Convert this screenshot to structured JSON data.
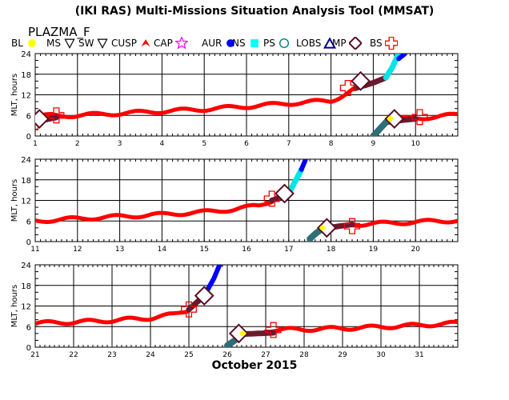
{
  "header": {
    "title": "(IKI RAS) Multi-Missions Situation Analysis Tool (MMSAT)",
    "subtitle": "PLAZMA_F"
  },
  "legend": [
    {
      "label": "BL",
      "symbol": "dot",
      "color": "#ffff00"
    },
    {
      "label": "MS",
      "symbol": "triangle-down-open",
      "color": "#000000"
    },
    {
      "label": "SW",
      "symbol": "triangle-down-open",
      "color": "#000000"
    },
    {
      "label": "CUSP",
      "symbol": "arrow-red",
      "color": "#ff0000"
    },
    {
      "label": "CAP",
      "symbol": "star-open",
      "color": "#ff00ff"
    },
    {
      "label": "AUR",
      "symbol": "dot",
      "color": "#0000ff"
    },
    {
      "label": "NS",
      "symbol": "square",
      "color": "#00ffff"
    },
    {
      "label": "PS",
      "symbol": "circle-open",
      "color": "#008080"
    },
    {
      "label": "LOBS",
      "symbol": "triangle-open",
      "color": "#000080"
    },
    {
      "label": "MP",
      "symbol": "diamond-open",
      "color": "#5a0f24"
    },
    {
      "label": "BS",
      "symbol": "cross-open",
      "color": "#ff0000"
    }
  ],
  "xcaption": "October 2015",
  "chart_data": [
    {
      "type": "line",
      "panel": 1,
      "ylabel": "MLT, hours",
      "xlim": [
        1,
        11
      ],
      "ylim": [
        0,
        24
      ],
      "yticks": [
        0,
        6,
        12,
        18,
        24
      ],
      "xticks": [
        1,
        2,
        3,
        4,
        5,
        6,
        7,
        8,
        9,
        10
      ],
      "tick_labels": [
        "1",
        "2",
        "3",
        "4",
        "5",
        "6",
        "7",
        "8",
        "9",
        "10"
      ],
      "grid": true,
      "series": [
        {
          "region": "SW",
          "color": "#ff0000",
          "segments": [
            {
              "x": [
                1.0,
                2.0,
                3.0,
                4.0,
                5.0,
                6.0,
                7.0,
                7.6,
                8.0,
                8.3,
                8.6
              ],
              "y": [
                5.8,
                6.0,
                6.6,
                7.2,
                7.8,
                8.6,
                9.5,
                10.0,
                10.2,
                12.0,
                14.0
              ]
            },
            {
              "x": [
                9.5,
                10.0,
                10.5,
                11.0
              ],
              "y": [
                5.0,
                5.2,
                5.6,
                6.2
              ]
            }
          ]
        },
        {
          "region": "MS",
          "color": "#6b1a2e",
          "segments": [
            {
              "x": [
                1.0,
                1.25,
                1.5
              ],
              "y": [
                4.0,
                4.8,
                5.4
              ]
            },
            {
              "x": [
                8.6,
                9.0,
                9.3
              ],
              "y": [
                14.0,
                15.5,
                17.0
              ]
            },
            {
              "x": [
                9.3,
                9.6,
                10.0
              ],
              "y": [
                4.0,
                4.5,
                5.0
              ]
            }
          ]
        },
        {
          "region": "NS",
          "color": "#00e5e5",
          "segments": [
            {
              "x": [
                9.3,
                9.45,
                9.6
              ],
              "y": [
                17.0,
                20.0,
                24.0
              ]
            }
          ]
        },
        {
          "region": "AUR",
          "color": "#0000ff",
          "segments": [
            {
              "x": [
                9.6,
                9.75
              ],
              "y": [
                22.5,
                24.0
              ]
            }
          ]
        },
        {
          "region": "PS",
          "color": "#2e6e78",
          "segments": [
            {
              "x": [
                9.0,
                9.15,
                9.3
              ],
              "y": [
                0.0,
                2.0,
                4.0
              ]
            }
          ]
        }
      ],
      "markers": [
        {
          "type": "BS",
          "x": 1.0,
          "y": 4.0
        },
        {
          "type": "BS",
          "x": 1.5,
          "y": 6.0
        },
        {
          "type": "BS",
          "x": 8.4,
          "y": 14.0
        },
        {
          "type": "BS",
          "x": 10.1,
          "y": 5.5
        },
        {
          "type": "MP",
          "x": 1.1,
          "y": 5.0
        },
        {
          "type": "MP",
          "x": 8.7,
          "y": 16.0
        },
        {
          "type": "MP",
          "x": 9.5,
          "y": 5.0
        },
        {
          "type": "BL",
          "x": 9.4,
          "y": 5.0
        }
      ]
    },
    {
      "type": "line",
      "panel": 2,
      "ylabel": "MLT, hours",
      "xlim": [
        11,
        21
      ],
      "ylim": [
        0,
        24
      ],
      "yticks": [
        0,
        6,
        12,
        18,
        24
      ],
      "xticks": [
        11,
        12,
        13,
        14,
        15,
        16,
        17,
        18,
        19,
        20
      ],
      "tick_labels": [
        "11",
        "12",
        "13",
        "14",
        "15",
        "16",
        "17",
        "18",
        "19",
        "20"
      ],
      "grid": true,
      "series": [
        {
          "region": "SW",
          "color": "#ff0000",
          "segments": [
            {
              "x": [
                11.0,
                12.0,
                13.0,
                14.0,
                15.0,
                15.7,
                16.3,
                16.6
              ],
              "y": [
                6.0,
                6.7,
                7.3,
                7.9,
                8.6,
                9.4,
                10.5,
                12.0
              ]
            },
            {
              "x": [
                18.5,
                19.0,
                20.0,
                21.0
              ],
              "y": [
                5.0,
                5.2,
                5.7,
                6.2
              ]
            }
          ]
        },
        {
          "region": "MS",
          "color": "#6b1a2e",
          "segments": [
            {
              "x": [
                16.6,
                16.85,
                17.0
              ],
              "y": [
                12.0,
                13.0,
                14.0
              ]
            },
            {
              "x": [
                17.8,
                18.2,
                18.5
              ],
              "y": [
                3.8,
                4.5,
                5.0
              ]
            }
          ]
        },
        {
          "region": "NS",
          "color": "#00e5e5",
          "segments": [
            {
              "x": [
                17.0,
                17.15,
                17.3
              ],
              "y": [
                14.0,
                17.5,
                21.0
              ]
            }
          ]
        },
        {
          "region": "AUR",
          "color": "#0000ff",
          "segments": [
            {
              "x": [
                17.3,
                17.4
              ],
              "y": [
                21.0,
                24.0
              ]
            }
          ]
        },
        {
          "region": "PS",
          "color": "#2e6e78",
          "segments": [
            {
              "x": [
                17.5,
                17.65,
                17.8
              ],
              "y": [
                0.8,
                2.5,
                3.8
              ]
            }
          ]
        }
      ],
      "markers": [
        {
          "type": "BS",
          "x": 16.6,
          "y": 12.5
        },
        {
          "type": "BS",
          "x": 18.5,
          "y": 4.5
        },
        {
          "type": "MP",
          "x": 16.9,
          "y": 14.0
        },
        {
          "type": "MP",
          "x": 17.9,
          "y": 4.0
        },
        {
          "type": "BL",
          "x": 17.8,
          "y": 4.0
        }
      ]
    },
    {
      "type": "line",
      "panel": 3,
      "ylabel": "MLT, hours",
      "xlim": [
        21,
        32
      ],
      "ylim": [
        0,
        24
      ],
      "yticks": [
        0,
        6,
        12,
        18,
        24
      ],
      "xticks": [
        21,
        22,
        23,
        24,
        25,
        26,
        27,
        28,
        29,
        30,
        31
      ],
      "tick_labels": [
        "21",
        "22",
        "23",
        "24",
        "25",
        "26",
        "27",
        "28",
        "29",
        "30",
        "31"
      ],
      "grid": true,
      "series": [
        {
          "region": "SW",
          "color": "#ff0000",
          "segments": [
            {
              "x": [
                21.0,
                22.0,
                23.0,
                24.0,
                24.6,
                25.0
              ],
              "y": [
                7.0,
                7.3,
                7.8,
                8.5,
                9.5,
                11.0
              ]
            },
            {
              "x": [
                27.0,
                28.0,
                29.0,
                30.0,
                31.0,
                32.0
              ],
              "y": [
                5.0,
                5.2,
                5.5,
                5.9,
                6.4,
                7.0
              ]
            }
          ]
        },
        {
          "region": "MS",
          "color": "#6b1a2e",
          "segments": [
            {
              "x": [
                25.0,
                25.2,
                25.4
              ],
              "y": [
                11.0,
                13.0,
                15.0
              ]
            },
            {
              "x": [
                26.4,
                26.8,
                27.2
              ],
              "y": [
                3.8,
                4.0,
                4.2
              ]
            }
          ]
        },
        {
          "region": "NS",
          "color": "#00e5e5",
          "segments": [
            {
              "x": [
                25.4,
                25.5
              ],
              "y": [
                15.0,
                17.0
              ]
            }
          ]
        },
        {
          "region": "AUR",
          "color": "#0000ff",
          "segments": [
            {
              "x": [
                25.5,
                25.65,
                25.8
              ],
              "y": [
                17.0,
                20.0,
                24.0
              ]
            }
          ]
        },
        {
          "region": "PS",
          "color": "#2e6e78",
          "segments": [
            {
              "x": [
                26.0,
                26.2,
                26.4
              ],
              "y": [
                0.5,
                2.0,
                3.8
              ]
            }
          ]
        }
      ],
      "markers": [
        {
          "type": "BS",
          "x": 25.0,
          "y": 11.0
        },
        {
          "type": "BS",
          "x": 27.2,
          "y": 5.0
        },
        {
          "type": "MP",
          "x": 25.4,
          "y": 15.0
        },
        {
          "type": "MP",
          "x": 26.3,
          "y": 4.0
        },
        {
          "type": "BL",
          "x": 26.4,
          "y": 4.0
        }
      ]
    }
  ]
}
